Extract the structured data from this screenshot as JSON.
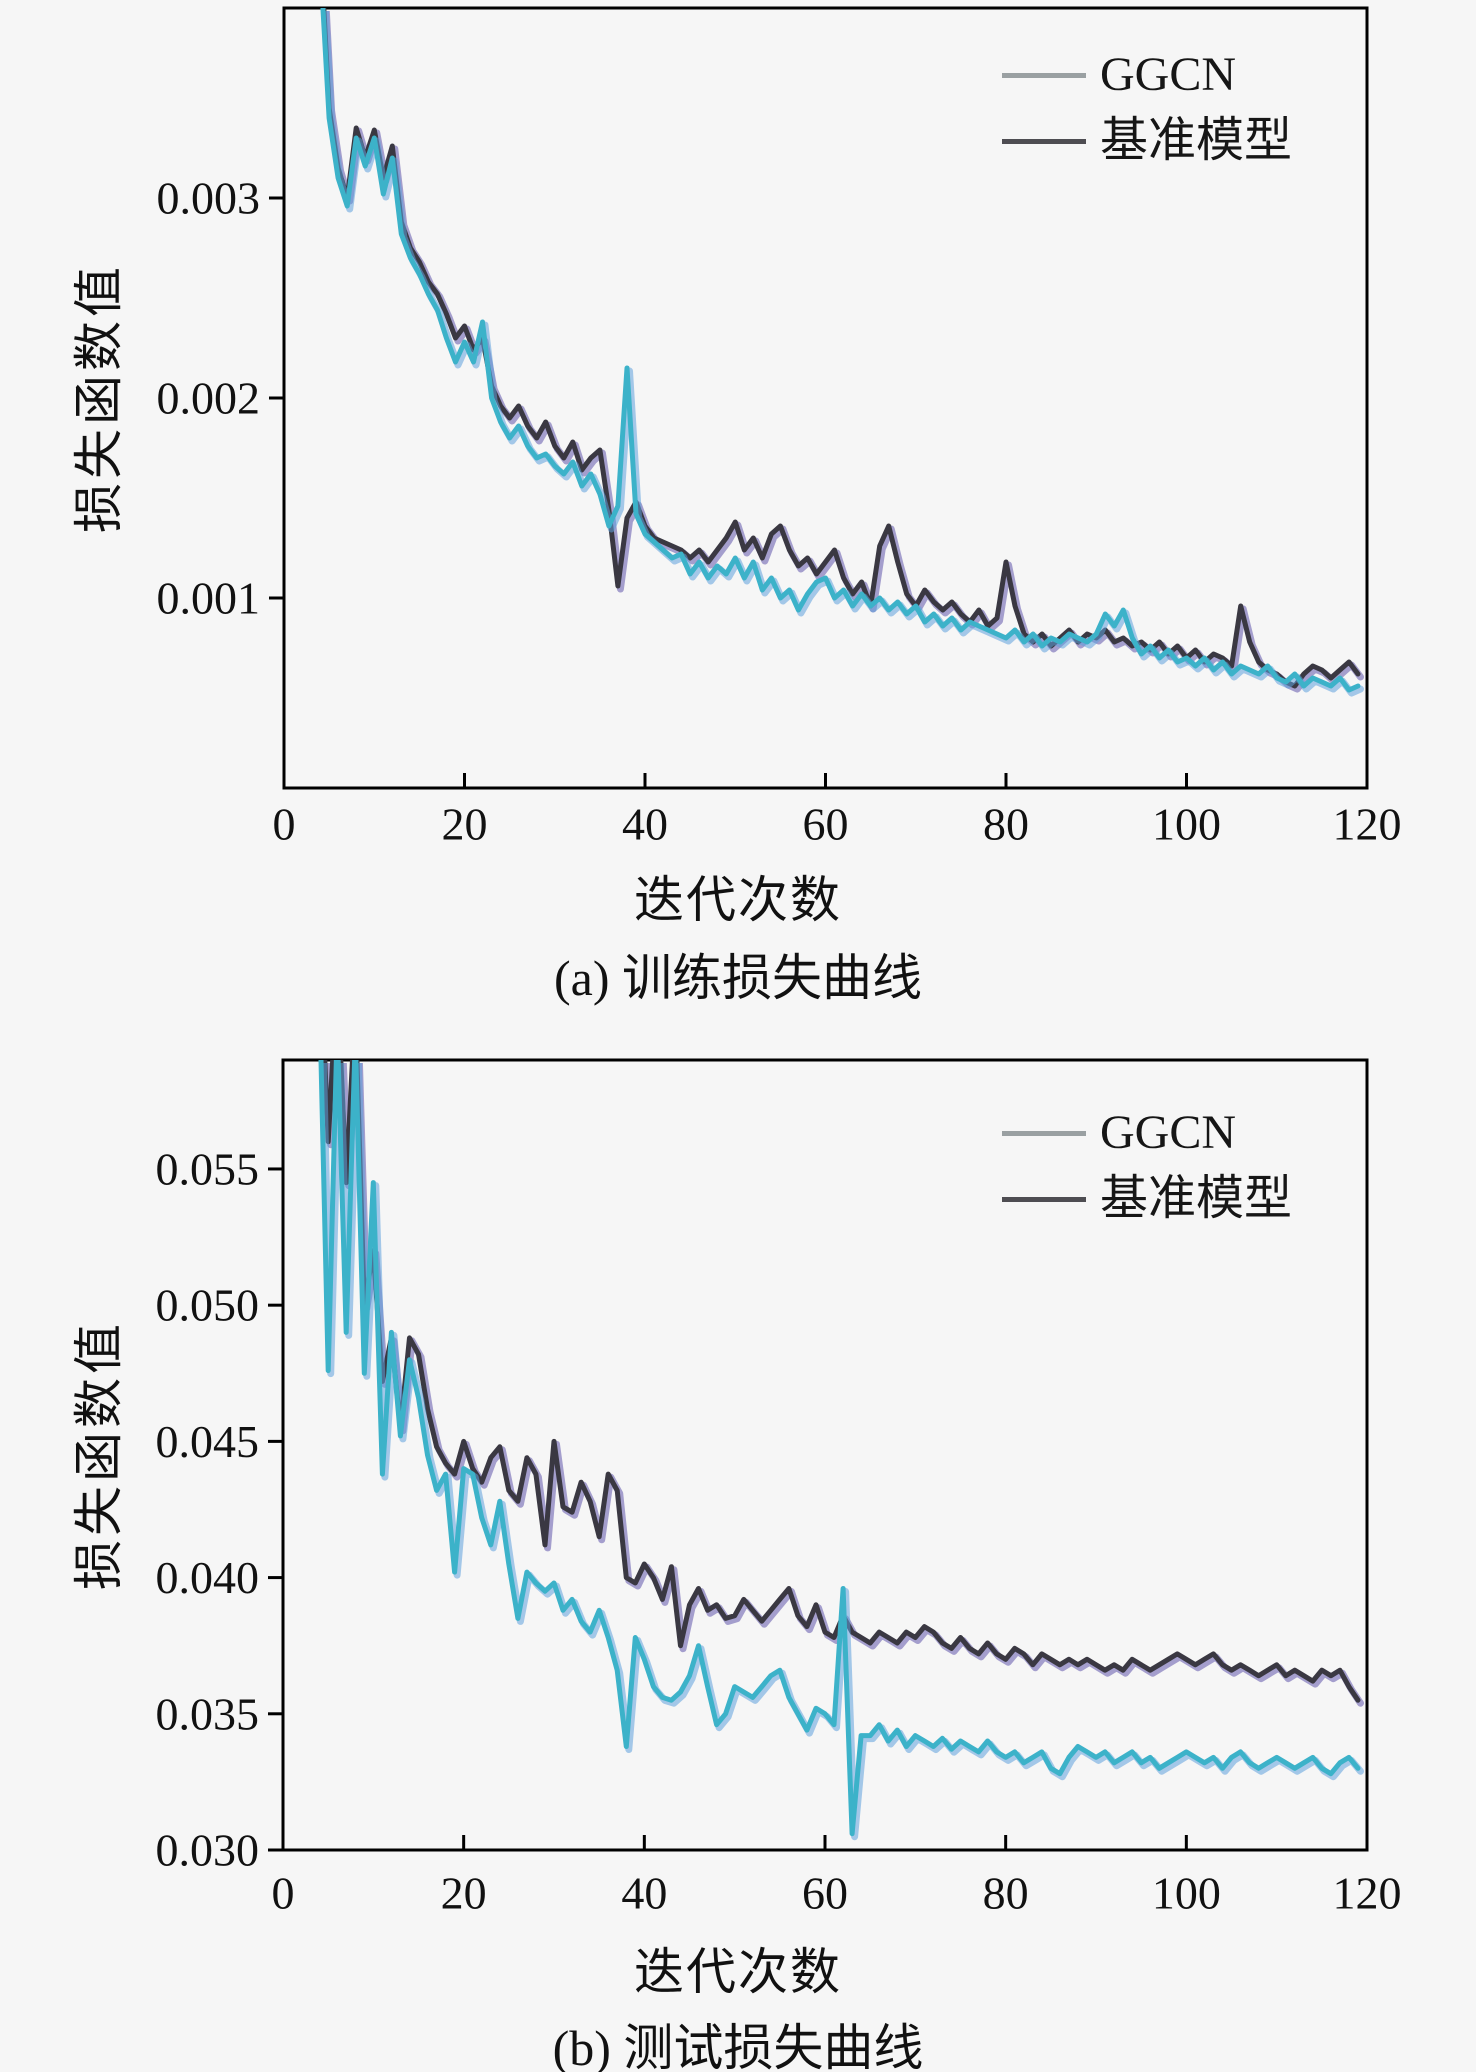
{
  "figure": {
    "background": "#f6f6f6",
    "axis_color": "#000000",
    "tick_label_color": "#111111",
    "colors": {
      "ggcn_line": "#3cb2c9",
      "ggcn_underlay": "#5fa0dc",
      "baseline_line": "#3a3842",
      "baseline_underlay": "#6156ab",
      "legend_ggcn_swatch": "#9aa0a2",
      "legend_baseline_swatch": "#4e4d52"
    }
  },
  "chart_data": [
    {
      "type": "line",
      "title": "(a) 训练损失曲线",
      "xlabel": "迭代次数",
      "ylabel": "损失函数值",
      "legend_position": "upper right",
      "grid": false,
      "xlim": [
        0,
        120
      ],
      "ylim": [
        5e-05,
        0.00395
      ],
      "x_ticks": [
        0,
        20,
        40,
        60,
        80,
        100,
        120
      ],
      "x_tick_labels": [
        "0",
        "20",
        "40",
        "60",
        "80",
        "100",
        "120"
      ],
      "y_ticks": [
        0.001,
        0.002,
        0.003
      ],
      "y_tick_labels": [
        "0.001",
        "0.002",
        "0.003"
      ],
      "x_start": 4,
      "x_step": 1,
      "series": [
        {
          "name": "GGCN",
          "color": "#3cb2c9",
          "underlay_color": "#5fa0dc",
          "legend_color": "#9aa0a2",
          "y": [
            0.0042,
            0.0034,
            0.0031,
            0.00296,
            0.0033,
            0.00316,
            0.0033,
            0.00302,
            0.0032,
            0.00282,
            0.0027,
            0.00262,
            0.00252,
            0.00244,
            0.0023,
            0.00218,
            0.00228,
            0.00218,
            0.00238,
            0.002,
            0.00188,
            0.0018,
            0.00186,
            0.00176,
            0.0017,
            0.00172,
            0.00166,
            0.00162,
            0.00168,
            0.00156,
            0.00162,
            0.00152,
            0.00136,
            0.00146,
            0.00215,
            0.00142,
            0.00132,
            0.00128,
            0.00124,
            0.0012,
            0.00122,
            0.00112,
            0.00118,
            0.0011,
            0.00116,
            0.00112,
            0.0012,
            0.0011,
            0.00118,
            0.00104,
            0.0011,
            0.001,
            0.00104,
            0.00094,
            0.00102,
            0.00108,
            0.0011,
            0.001,
            0.00104,
            0.00096,
            0.00102,
            0.00096,
            0.001,
            0.00094,
            0.00098,
            0.00092,
            0.00096,
            0.00088,
            0.00092,
            0.00086,
            0.0009,
            0.00084,
            0.00088,
            0.00086,
            0.00084,
            0.00082,
            0.0008,
            0.00084,
            0.00078,
            0.00082,
            0.00076,
            0.0008,
            0.00078,
            0.00082,
            0.0008,
            0.00078,
            0.00082,
            0.00092,
            0.00086,
            0.00094,
            0.0008,
            0.00072,
            0.00076,
            0.0007,
            0.00074,
            0.00068,
            0.0007,
            0.00066,
            0.0007,
            0.00064,
            0.00068,
            0.00062,
            0.00066,
            0.00064,
            0.00062,
            0.00066,
            0.0006,
            0.00058,
            0.00062,
            0.00056,
            0.0006,
            0.00058,
            0.00056,
            0.0006,
            0.00054,
            0.00056
          ]
        },
        {
          "name": "基准模型",
          "color": "#3a3842",
          "underlay_color": "#6156ab",
          "legend_color": "#4e4d52",
          "y": [
            0.0043,
            0.00345,
            0.00315,
            0.003,
            0.00335,
            0.0032,
            0.00334,
            0.0031,
            0.00326,
            0.00288,
            0.00275,
            0.00268,
            0.00258,
            0.00252,
            0.00242,
            0.0023,
            0.00236,
            0.00224,
            0.0023,
            0.00206,
            0.00196,
            0.0019,
            0.00196,
            0.00186,
            0.0018,
            0.00188,
            0.00176,
            0.0017,
            0.00178,
            0.00164,
            0.0017,
            0.00174,
            0.00144,
            0.00106,
            0.0014,
            0.00148,
            0.00136,
            0.0013,
            0.00128,
            0.00126,
            0.00124,
            0.0012,
            0.00124,
            0.00118,
            0.00124,
            0.0013,
            0.00138,
            0.00124,
            0.0013,
            0.0012,
            0.00132,
            0.00136,
            0.00124,
            0.00116,
            0.0012,
            0.00112,
            0.00118,
            0.00124,
            0.0011,
            0.00102,
            0.00108,
            0.00096,
            0.00126,
            0.00136,
            0.00118,
            0.00102,
            0.00096,
            0.00104,
            0.00098,
            0.00094,
            0.00098,
            0.00092,
            0.00088,
            0.00094,
            0.00086,
            0.0009,
            0.00118,
            0.00096,
            0.00082,
            0.00078,
            0.00082,
            0.00076,
            0.0008,
            0.00084,
            0.00078,
            0.00082,
            0.0008,
            0.00084,
            0.00078,
            0.0008,
            0.00076,
            0.00078,
            0.00074,
            0.00078,
            0.00072,
            0.00076,
            0.0007,
            0.00074,
            0.00068,
            0.00072,
            0.0007,
            0.00066,
            0.00096,
            0.00078,
            0.00068,
            0.00064,
            0.00062,
            0.00058,
            0.00056,
            0.00062,
            0.00066,
            0.00064,
            0.0006,
            0.00064,
            0.00068,
            0.00062
          ]
        }
      ]
    },
    {
      "type": "line",
      "title": "(b) 测试损失曲线",
      "xlabel": "迭代次数",
      "ylabel": "损失函数值",
      "legend_position": "upper right",
      "grid": false,
      "xlim": [
        0,
        120
      ],
      "ylim": [
        0.03,
        0.059
      ],
      "x_ticks": [
        0,
        20,
        40,
        60,
        80,
        100,
        120
      ],
      "x_tick_labels": [
        "0",
        "20",
        "40",
        "60",
        "80",
        "100",
        "120"
      ],
      "y_ticks": [
        0.03,
        0.035,
        0.04,
        0.045,
        0.05,
        0.055
      ],
      "y_tick_labels": [
        "0.030",
        "0.035",
        "0.040",
        "0.045",
        "0.050",
        "0.055"
      ],
      "x_start": 4,
      "x_step": 1,
      "series": [
        {
          "name": "GGCN",
          "color": "#3cb2c9",
          "underlay_color": "#5fa0dc",
          "legend_color": "#9aa0a2",
          "y": [
            0.062,
            0.0476,
            0.0602,
            0.049,
            0.0598,
            0.0475,
            0.0545,
            0.0438,
            0.049,
            0.0452,
            0.048,
            0.0466,
            0.0445,
            0.0432,
            0.0438,
            0.0402,
            0.044,
            0.0438,
            0.0422,
            0.0412,
            0.0428,
            0.0405,
            0.0385,
            0.0402,
            0.0398,
            0.0395,
            0.0398,
            0.0388,
            0.0392,
            0.0384,
            0.038,
            0.0388,
            0.0378,
            0.0366,
            0.0338,
            0.0378,
            0.037,
            0.036,
            0.0356,
            0.0355,
            0.0358,
            0.0364,
            0.0375,
            0.036,
            0.0346,
            0.035,
            0.036,
            0.0358,
            0.0356,
            0.036,
            0.0364,
            0.0366,
            0.0356,
            0.035,
            0.0344,
            0.0352,
            0.035,
            0.0346,
            0.0396,
            0.0306,
            0.0342,
            0.0342,
            0.0346,
            0.034,
            0.0344,
            0.0338,
            0.0342,
            0.034,
            0.0338,
            0.0341,
            0.0337,
            0.034,
            0.0338,
            0.0336,
            0.034,
            0.0336,
            0.0334,
            0.0336,
            0.0332,
            0.0334,
            0.0336,
            0.033,
            0.0328,
            0.0334,
            0.0338,
            0.0336,
            0.0334,
            0.0336,
            0.0332,
            0.0334,
            0.0336,
            0.0332,
            0.0334,
            0.033,
            0.0332,
            0.0334,
            0.0336,
            0.0334,
            0.0332,
            0.0334,
            0.033,
            0.0334,
            0.0336,
            0.0332,
            0.033,
            0.0332,
            0.0334,
            0.0332,
            0.033,
            0.0332,
            0.0334,
            0.033,
            0.0328,
            0.0332,
            0.0334,
            0.033
          ]
        },
        {
          "name": "基准模型",
          "color": "#3a3842",
          "underlay_color": "#6156ab",
          "legend_color": "#4e4d52",
          "y": [
            0.064,
            0.056,
            0.062,
            0.0545,
            0.061,
            0.05,
            0.052,
            0.0472,
            0.0488,
            0.0455,
            0.0488,
            0.0482,
            0.0462,
            0.0448,
            0.0442,
            0.0438,
            0.045,
            0.044,
            0.0435,
            0.0444,
            0.0448,
            0.0432,
            0.0428,
            0.0444,
            0.0438,
            0.0412,
            0.045,
            0.0426,
            0.0424,
            0.0435,
            0.0428,
            0.0415,
            0.0438,
            0.0432,
            0.04,
            0.0398,
            0.0405,
            0.04,
            0.0392,
            0.0404,
            0.0375,
            0.039,
            0.0396,
            0.0388,
            0.039,
            0.0385,
            0.0386,
            0.0392,
            0.0388,
            0.0384,
            0.0388,
            0.0392,
            0.0396,
            0.0386,
            0.0382,
            0.039,
            0.038,
            0.0378,
            0.0386,
            0.038,
            0.0378,
            0.0376,
            0.038,
            0.0378,
            0.0376,
            0.038,
            0.0378,
            0.0382,
            0.038,
            0.0376,
            0.0374,
            0.0378,
            0.0374,
            0.0372,
            0.0376,
            0.0372,
            0.037,
            0.0374,
            0.0372,
            0.0368,
            0.0372,
            0.037,
            0.0368,
            0.037,
            0.0368,
            0.037,
            0.0368,
            0.0366,
            0.0368,
            0.0366,
            0.037,
            0.0368,
            0.0366,
            0.0368,
            0.037,
            0.0372,
            0.037,
            0.0368,
            0.037,
            0.0372,
            0.0368,
            0.0366,
            0.0368,
            0.0366,
            0.0364,
            0.0366,
            0.0368,
            0.0364,
            0.0366,
            0.0364,
            0.0362,
            0.0366,
            0.0364,
            0.0366,
            0.036,
            0.0355
          ]
        }
      ]
    }
  ]
}
